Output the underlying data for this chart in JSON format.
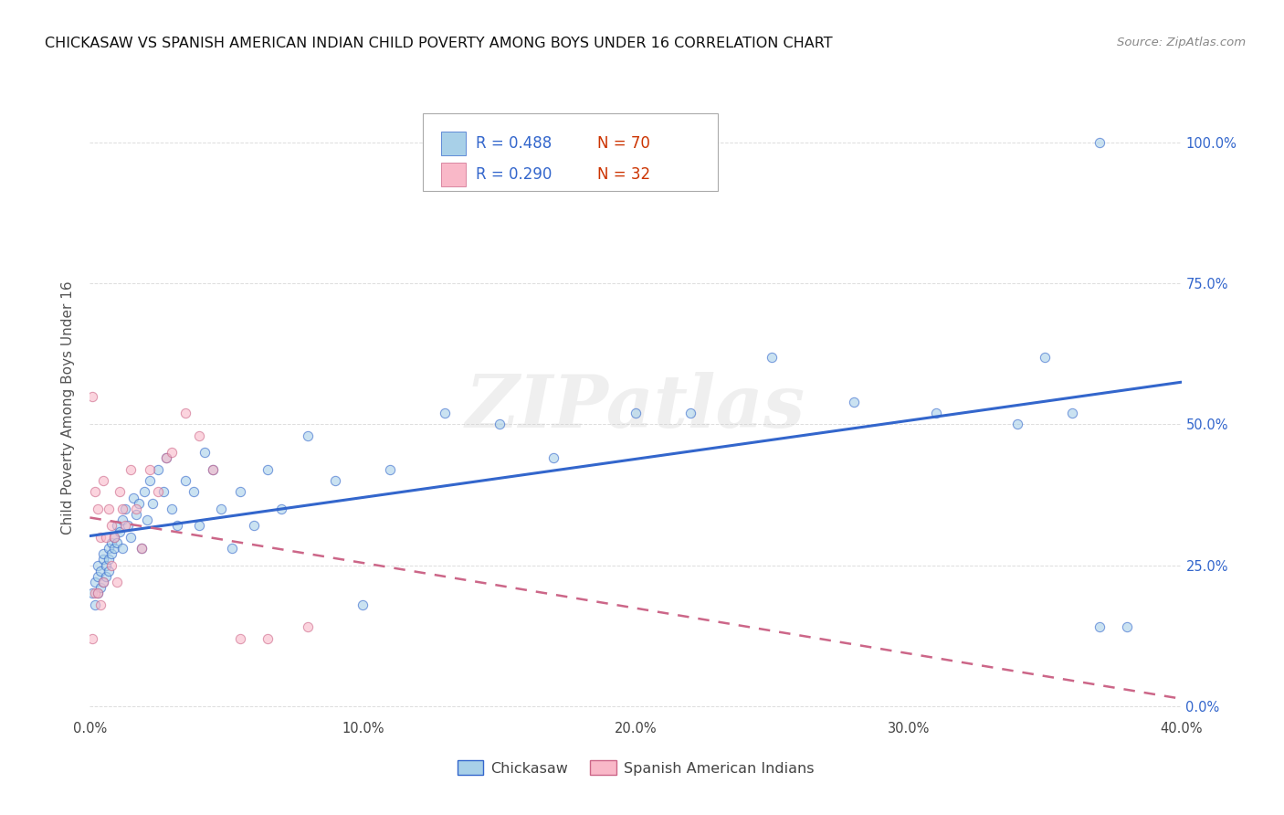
{
  "title": "CHICKASAW VS SPANISH AMERICAN INDIAN CHILD POVERTY AMONG BOYS UNDER 16 CORRELATION CHART",
  "source": "Source: ZipAtlas.com",
  "ylabel": "Child Poverty Among Boys Under 16",
  "watermark": "ZIPatlas",
  "legend_r1": "0.488",
  "legend_n1": "70",
  "legend_r2": "0.290",
  "legend_n2": "32",
  "color_chickasaw": "#a8d0e8",
  "color_spanish": "#f9b8c8",
  "trendline_color_chickasaw": "#3366cc",
  "trendline_color_spanish": "#cc6688",
  "color_r": "#3366cc",
  "color_n": "#cc3300",
  "background_color": "#ffffff",
  "grid_color": "#dddddd",
  "xlim": [
    0.0,
    0.4
  ],
  "ylim": [
    -0.02,
    1.08
  ],
  "chickasaw_x": [
    0.001,
    0.002,
    0.002,
    0.003,
    0.003,
    0.003,
    0.004,
    0.004,
    0.005,
    0.005,
    0.005,
    0.006,
    0.006,
    0.007,
    0.007,
    0.007,
    0.008,
    0.008,
    0.009,
    0.009,
    0.01,
    0.01,
    0.011,
    0.012,
    0.012,
    0.013,
    0.014,
    0.015,
    0.016,
    0.017,
    0.018,
    0.019,
    0.02,
    0.021,
    0.022,
    0.023,
    0.025,
    0.027,
    0.028,
    0.03,
    0.032,
    0.035,
    0.038,
    0.04,
    0.042,
    0.045,
    0.048,
    0.052,
    0.055,
    0.06,
    0.065,
    0.07,
    0.08,
    0.09,
    0.1,
    0.11,
    0.13,
    0.15,
    0.17,
    0.2,
    0.22,
    0.25,
    0.28,
    0.31,
    0.34,
    0.35,
    0.36,
    0.37,
    0.38,
    0.37
  ],
  "chickasaw_y": [
    0.2,
    0.22,
    0.18,
    0.23,
    0.25,
    0.2,
    0.24,
    0.21,
    0.26,
    0.22,
    0.27,
    0.25,
    0.23,
    0.28,
    0.26,
    0.24,
    0.29,
    0.27,
    0.3,
    0.28,
    0.32,
    0.29,
    0.31,
    0.33,
    0.28,
    0.35,
    0.32,
    0.3,
    0.37,
    0.34,
    0.36,
    0.28,
    0.38,
    0.33,
    0.4,
    0.36,
    0.42,
    0.38,
    0.44,
    0.35,
    0.32,
    0.4,
    0.38,
    0.32,
    0.45,
    0.42,
    0.35,
    0.28,
    0.38,
    0.32,
    0.42,
    0.35,
    0.48,
    0.4,
    0.18,
    0.42,
    0.52,
    0.5,
    0.44,
    0.52,
    0.52,
    0.62,
    0.54,
    0.52,
    0.5,
    0.62,
    0.52,
    0.14,
    0.14,
    1.0
  ],
  "spanish_x": [
    0.001,
    0.001,
    0.002,
    0.002,
    0.003,
    0.003,
    0.004,
    0.004,
    0.005,
    0.005,
    0.006,
    0.007,
    0.008,
    0.008,
    0.009,
    0.01,
    0.011,
    0.012,
    0.013,
    0.015,
    0.017,
    0.019,
    0.022,
    0.025,
    0.028,
    0.03,
    0.035,
    0.04,
    0.045,
    0.055,
    0.065,
    0.08
  ],
  "spanish_y": [
    0.55,
    0.12,
    0.38,
    0.2,
    0.35,
    0.2,
    0.3,
    0.18,
    0.4,
    0.22,
    0.3,
    0.35,
    0.32,
    0.25,
    0.3,
    0.22,
    0.38,
    0.35,
    0.32,
    0.42,
    0.35,
    0.28,
    0.42,
    0.38,
    0.44,
    0.45,
    0.52,
    0.48,
    0.42,
    0.12,
    0.12,
    0.14
  ]
}
